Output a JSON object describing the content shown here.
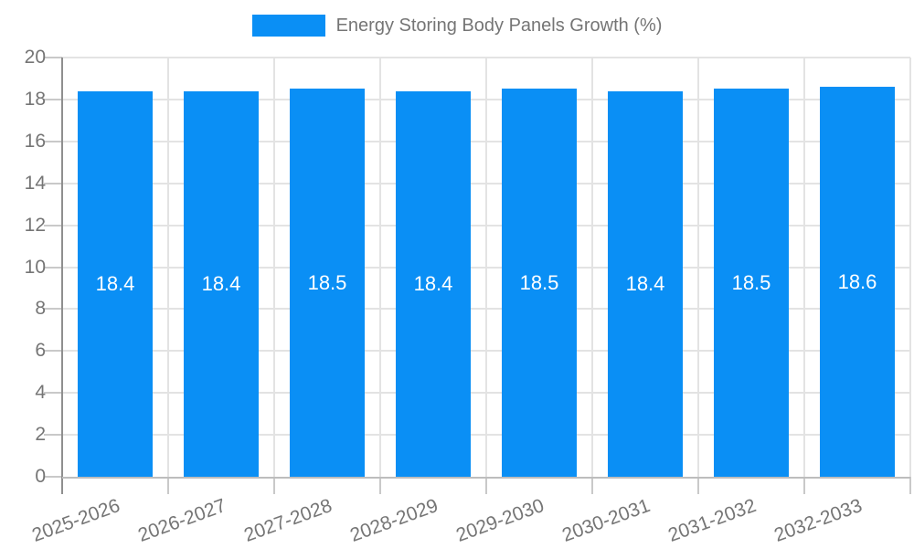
{
  "legend": {
    "position": "top",
    "label": "Energy Storing Body Panels Growth (%)"
  },
  "chart_data": {
    "type": "bar",
    "title": "Energy Storing Body Panels Growth (%)",
    "categories": [
      "2025-2026",
      "2026-2027",
      "2027-2028",
      "2028-2029",
      "2029-2030",
      "2030-2031",
      "2031-2032",
      "2032-2033"
    ],
    "values": [
      18.4,
      18.4,
      18.5,
      18.4,
      18.5,
      18.4,
      18.5,
      18.6
    ],
    "value_labels": [
      "18.4",
      "18.4",
      "18.5",
      "18.4",
      "18.5",
      "18.4",
      "18.5",
      "18.6"
    ],
    "xlabel": "",
    "ylabel": "",
    "ylim": [
      0,
      20
    ],
    "yticks": [
      0,
      2,
      4,
      6,
      8,
      10,
      12,
      14,
      16,
      18,
      20
    ],
    "grid": true,
    "legend_position": "top",
    "x_label_rotation_deg": -20,
    "colors": {
      "bar": "#0A8FF5",
      "bar_label": "#FFFFFF",
      "axis_text": "#757575",
      "gridline": "#E3E3E3",
      "y_axis_line": "#8F8F8F",
      "x_axis_line": "#BDBDBD",
      "tick_mark": "#C9C9C9",
      "background": "#FFFFFF"
    }
  }
}
